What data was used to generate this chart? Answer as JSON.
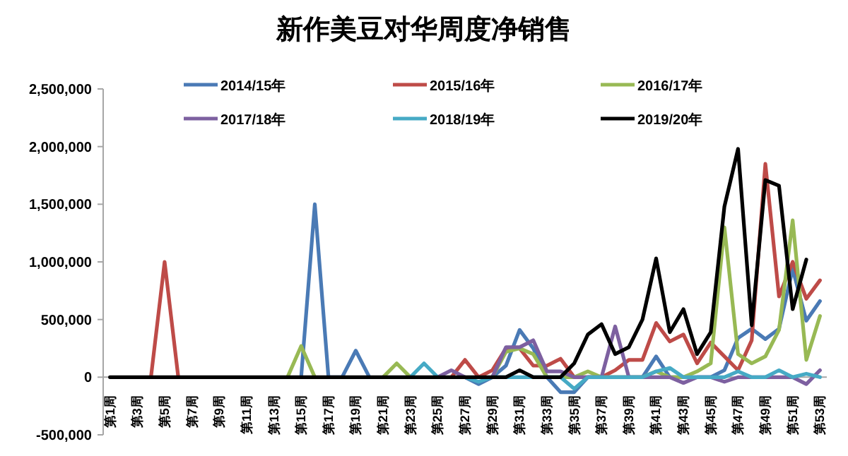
{
  "chart_data": {
    "type": "line",
    "title": "新作美豆对华周度净销售",
    "categories": [
      "第1周",
      null,
      "第3周",
      null,
      "第5周",
      null,
      "第7周",
      null,
      "第9周",
      null,
      "第11周",
      null,
      "第13周",
      null,
      "第15周",
      null,
      "第17周",
      null,
      "第19周",
      null,
      "第21周",
      null,
      "第23周",
      null,
      "第25周",
      null,
      "第27周",
      null,
      "第29周",
      null,
      "第31周",
      null,
      "第33周",
      null,
      "第35周",
      null,
      "第37周",
      null,
      "第39周",
      null,
      "第41周",
      null,
      "第43周",
      null,
      "第45周",
      null,
      "第47周",
      null,
      "第49周",
      null,
      "第51周",
      null,
      "第53周"
    ],
    "series": [
      {
        "name": "2014/15年",
        "color": "#4a7ab5",
        "values": [
          null,
          null,
          null,
          null,
          null,
          null,
          null,
          null,
          null,
          null,
          null,
          null,
          null,
          null,
          0,
          1500000,
          0,
          0,
          230000,
          0,
          null,
          null,
          null,
          null,
          null,
          null,
          0,
          -60000,
          0,
          100000,
          410000,
          250000,
          0,
          -130000,
          -130000,
          0,
          0,
          0,
          0,
          0,
          180000,
          0,
          0,
          0,
          0,
          60000,
          340000,
          420000,
          330000,
          420000,
          940000,
          490000,
          660000
        ]
      },
      {
        "name": "2015/16年",
        "color": "#be4b48",
        "values": [
          null,
          null,
          null,
          0,
          1000000,
          0,
          null,
          null,
          null,
          null,
          null,
          null,
          null,
          null,
          null,
          null,
          null,
          null,
          null,
          null,
          null,
          null,
          null,
          null,
          null,
          0,
          150000,
          0,
          60000,
          250000,
          250000,
          100000,
          100000,
          160000,
          0,
          0,
          0,
          60000,
          150000,
          150000,
          470000,
          310000,
          370000,
          120000,
          300000,
          180000,
          60000,
          320000,
          1850000,
          700000,
          1000000,
          680000,
          840000
        ]
      },
      {
        "name": "2016/17年",
        "color": "#98b954",
        "values": [
          null,
          null,
          null,
          null,
          null,
          null,
          null,
          null,
          null,
          null,
          null,
          null,
          null,
          0,
          270000,
          0,
          null,
          null,
          null,
          null,
          0,
          120000,
          0,
          null,
          null,
          null,
          null,
          null,
          0,
          220000,
          250000,
          200000,
          0,
          0,
          0,
          50000,
          0,
          0,
          0,
          0,
          50000,
          0,
          0,
          50000,
          120000,
          1300000,
          200000,
          120000,
          180000,
          410000,
          1360000,
          150000,
          530000
        ]
      },
      {
        "name": "2017/18年",
        "color": "#7d60a0",
        "values": [
          null,
          null,
          null,
          null,
          null,
          null,
          null,
          null,
          null,
          null,
          null,
          null,
          null,
          null,
          null,
          null,
          null,
          null,
          null,
          null,
          null,
          null,
          null,
          null,
          0,
          60000,
          0,
          null,
          0,
          260000,
          260000,
          320000,
          50000,
          50000,
          0,
          0,
          0,
          440000,
          0,
          0,
          0,
          0,
          -50000,
          0,
          0,
          -40000,
          0,
          0,
          0,
          0,
          0,
          -60000,
          60000
        ]
      },
      {
        "name": "2018/19年",
        "color": "#46aac5",
        "values": [
          null,
          null,
          null,
          null,
          null,
          null,
          null,
          null,
          null,
          null,
          null,
          null,
          null,
          null,
          null,
          null,
          null,
          null,
          null,
          null,
          null,
          null,
          0,
          120000,
          0,
          null,
          0,
          -40000,
          0,
          0,
          0,
          0,
          0,
          0,
          -100000,
          0,
          0,
          0,
          0,
          0,
          50000,
          80000,
          0,
          0,
          0,
          0,
          50000,
          0,
          0,
          60000,
          0,
          30000,
          0
        ]
      },
      {
        "name": "2019/20年",
        "color": "#000000",
        "values": [
          0,
          0,
          0,
          0,
          0,
          0,
          0,
          0,
          0,
          0,
          0,
          0,
          0,
          0,
          0,
          0,
          0,
          0,
          0,
          0,
          0,
          0,
          0,
          0,
          0,
          0,
          0,
          0,
          0,
          0,
          60000,
          0,
          0,
          0,
          120000,
          370000,
          460000,
          200000,
          260000,
          500000,
          1030000,
          390000,
          590000,
          200000,
          390000,
          1480000,
          1980000,
          450000,
          1710000,
          1660000,
          590000,
          1020000,
          null
        ]
      }
    ],
    "ylim": [
      -500000,
      2500000
    ],
    "yticks": [
      {
        "value": -500000,
        "label": "-500,000"
      },
      0,
      {
        "value": 500000,
        "label": "500,000"
      },
      {
        "value": 1000000,
        "label": "1,000,000"
      },
      {
        "value": 1500000,
        "label": "1,500,000"
      },
      {
        "value": 2000000,
        "label": "2,000,000"
      },
      {
        "value": 2500000,
        "label": "2,500,000"
      }
    ],
    "grid": false,
    "legend": "top"
  }
}
